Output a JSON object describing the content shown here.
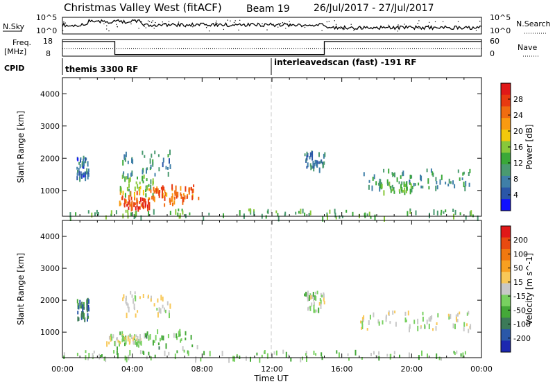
{
  "title": {
    "station": "Christmas Valley West (fitACF)",
    "beam": "Beam 19",
    "dates": "26/Jul/2017 - 27/Jul/2017"
  },
  "top_panels": {
    "nsky_label": "N.Sky",
    "nsky_ticks": [
      "10^5",
      "10^0"
    ],
    "nsearch_label": "N.Search",
    "nsearch_ticks": [
      "10^5",
      "10^0"
    ],
    "freq_label_1": "Freq.",
    "freq_label_2": "[MHz]",
    "freq_ticks": [
      "18",
      "8"
    ],
    "nave_label": "Nave",
    "nave_ticks": [
      "60",
      "0"
    ],
    "cpid_label": "CPID",
    "cpid_segments": [
      "themis 3300 RF",
      "interleavedscan (fast) -191 RF"
    ],
    "freq_steps": [
      {
        "from": 0.0,
        "to": 3.0,
        "level": 0.88
      },
      {
        "from": 3.0,
        "to": 15.0,
        "level": 0.1
      },
      {
        "from": 15.0,
        "to": 24.0,
        "level": 0.88
      }
    ]
  },
  "colors": {
    "power": [
      "#1010ff",
      "#2a56a8",
      "#3f7fa8",
      "#4a9a70",
      "#3aa838",
      "#88c83a",
      "#f2c80c",
      "#fa9a10",
      "#f06c10",
      "#e83a10",
      "#e01818"
    ],
    "velocity": [
      "#1c28b0",
      "#2a58a8",
      "#3c7a58",
      "#44a838",
      "#78d060",
      "#c8c8c8",
      "#f8c858",
      "#f8a020",
      "#f07810",
      "#e84a10",
      "#e01818"
    ],
    "frame": "#000000",
    "noon_line": "#c8c8c8"
  },
  "chart_data": [
    {
      "type": "heatmap",
      "name": "power",
      "ylabel": "Slant Range [km]",
      "xlabel": "Time UT",
      "xlim": [
        0,
        24
      ],
      "ylim": [
        200,
        4500
      ],
      "x_ticks": [
        "00:00",
        "04:00",
        "08:00",
        "12:00",
        "16:00",
        "20:00",
        "00:00"
      ],
      "y_ticks": [
        "1000",
        "2000",
        "3000",
        "4000"
      ],
      "colorbar": {
        "label": "Power [dB]",
        "ticks": [
          "28",
          "24",
          "20",
          "16",
          "12",
          "8",
          "4"
        ],
        "range": [
          0,
          30
        ]
      },
      "clusters": [
        {
          "t0": 2.8,
          "t1": 7.9,
          "r0": 550,
          "r1": 1100,
          "value": 22
        },
        {
          "t0": 3.2,
          "t1": 5.2,
          "r0": 900,
          "r1": 1500,
          "value": 14
        },
        {
          "t0": 3.5,
          "t1": 5.0,
          "r0": 500,
          "r1": 800,
          "value": 26
        },
        {
          "t0": 5.0,
          "t1": 7.5,
          "r0": 800,
          "r1": 1200,
          "value": 24
        },
        {
          "t0": 0.8,
          "t1": 1.5,
          "r0": 1400,
          "r1": 2100,
          "value": 6
        },
        {
          "t0": 3.4,
          "t1": 6.2,
          "r0": 1500,
          "r1": 2300,
          "value": 8
        },
        {
          "t0": 17.0,
          "t1": 23.5,
          "r0": 1100,
          "r1": 1700,
          "value": 9
        },
        {
          "t0": 18.0,
          "t1": 20.0,
          "r0": 1000,
          "r1": 1300,
          "value": 12
        },
        {
          "t0": 13.8,
          "t1": 15.0,
          "r0": 1700,
          "r1": 2300,
          "value": 7
        },
        {
          "t0": 0.0,
          "t1": 24.0,
          "r0": 200,
          "r1": 450,
          "value": 12
        }
      ]
    },
    {
      "type": "heatmap",
      "name": "velocity",
      "ylabel": "Slant Range [km]",
      "xlabel": "Time UT",
      "xlim": [
        0,
        24
      ],
      "ylim": [
        200,
        4500
      ],
      "x_ticks": [
        "00:00",
        "04:00",
        "08:00",
        "12:00",
        "16:00",
        "20:00",
        "00:00"
      ],
      "y_ticks": [
        "1000",
        "2000",
        "3000",
        "4000"
      ],
      "colorbar": {
        "label": "Velocity [m s^-1]",
        "ticks": [
          "200",
          "100",
          "50",
          "15",
          "-15",
          "-50",
          "-100",
          "-200"
        ],
        "range": [
          -250,
          250
        ]
      },
      "clusters": [
        {
          "t0": 2.8,
          "t1": 7.9,
          "r0": 550,
          "r1": 1100,
          "value": -60
        },
        {
          "t0": 2.5,
          "t1": 4.5,
          "r0": 700,
          "r1": 950,
          "value": 0
        },
        {
          "t0": 3.4,
          "t1": 6.2,
          "r0": 1500,
          "r1": 2300,
          "value": 5
        },
        {
          "t0": 0.8,
          "t1": 1.5,
          "r0": 1400,
          "r1": 2100,
          "value": -150
        },
        {
          "t0": 17.0,
          "t1": 23.5,
          "r0": 1100,
          "r1": 1700,
          "value": 0
        },
        {
          "t0": 13.8,
          "t1": 15.0,
          "r0": 1700,
          "r1": 2300,
          "value": -20
        },
        {
          "t0": 0.0,
          "t1": 24.0,
          "r0": 200,
          "r1": 450,
          "value": -40
        }
      ]
    }
  ],
  "x_axis_title": "Time UT"
}
